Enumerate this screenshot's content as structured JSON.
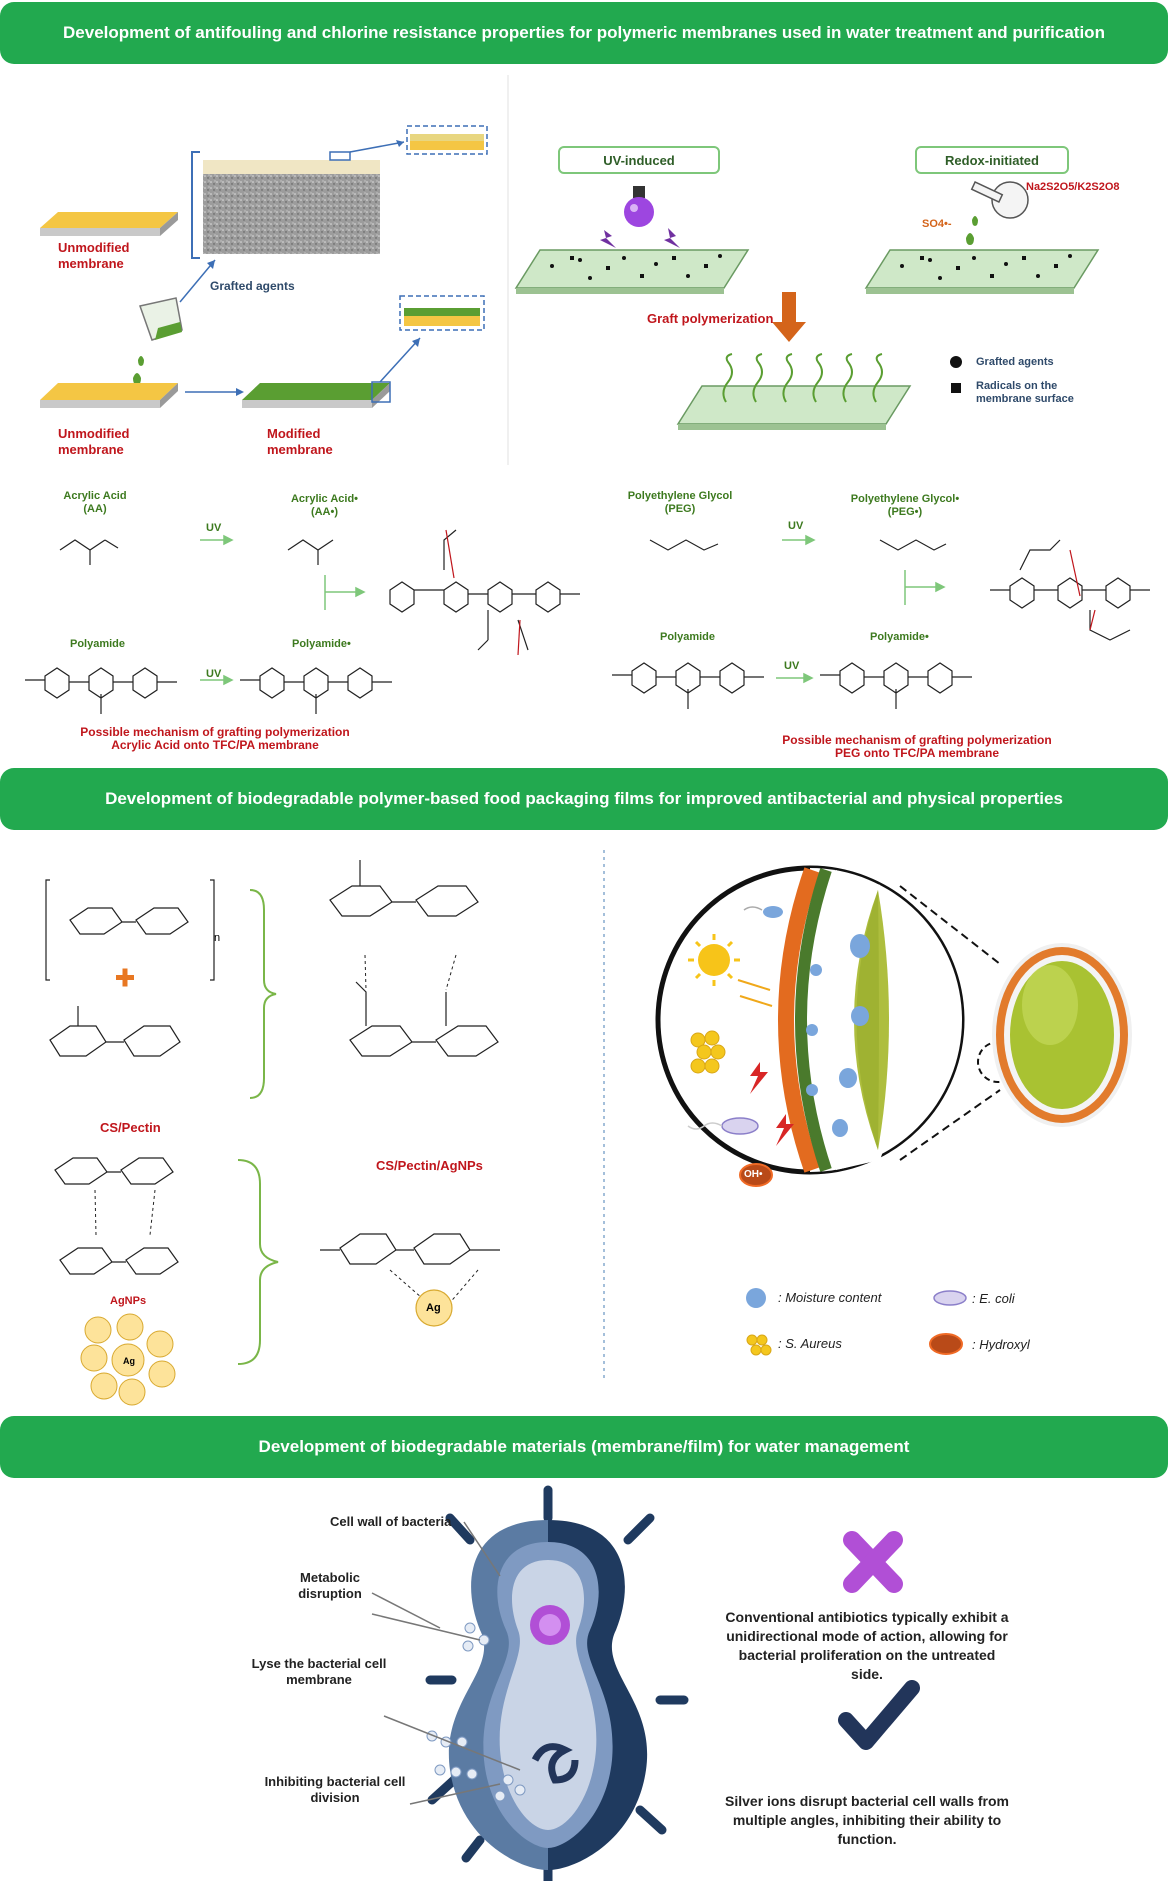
{
  "banners": {
    "b1": "Development of antifouling and chlorine resistance properties for polymeric membranes used in water treatment and purification",
    "b2": "Development of biodegradable polymer-based food packaging films for improved antibacterial and physical properties",
    "b3": "Development of biodegradable materials (membrane/film) for water management"
  },
  "section1": {
    "unmodified_1": "Unmodified membrane",
    "grafted_agents": "Grafted agents",
    "unmodified_2": "Unmodified membrane",
    "modified": "Modified membrane",
    "uv_induced": "UV-induced",
    "redox_initiated": "Redox-initiated",
    "oxidant": "Na2S2O5/K2S2O8",
    "sulfate_radical": "SO4•-",
    "graft_polymerization": "Graft polymerization",
    "legend_grafted": "Grafted agents",
    "legend_radicals": "Radicals on the membrane surface",
    "acrylic_acid": "Acrylic Acid",
    "aa": "(AA)",
    "acrylic_acid_rad": "Acrylic Acid•",
    "aa_rad": "(AA•)",
    "uv": "UV",
    "polyamide": "Polyamide",
    "polyamide_rad": "Polyamide•",
    "mech_aa_1": "Possible mechanism of grafting polymerization",
    "mech_aa_2": "Acrylic Acid onto TFC/PA membrane",
    "peg": "Polyethylene Glycol",
    "peg_abbr": "(PEG)",
    "peg_rad": "Polyethylene Glycol•",
    "peg_rad_abbr": "(PEG•)",
    "mech_peg_1": "Possible mechanism of grafting polymerization",
    "mech_peg_2": "PEG onto TFC/PA membrane"
  },
  "section2": {
    "cs_pectin": "CS/Pectin",
    "cs_pectin_ag": "CS/Pectin/AgNPs",
    "agnps": "AgNPs",
    "ag": "Ag",
    "n": "n",
    "plus": "+",
    "oh_label": "OH•",
    "legend_moisture": ": Moisture content",
    "legend_ecoli": ": E. coli",
    "legend_saureus": ": S. Aureus",
    "legend_hydroxyl": ": Hydroxyl"
  },
  "section3": {
    "cell_wall": "Cell wall of bacteria",
    "metabolic": "Metabolic disruption",
    "lyse": "Lyse the bacterial cell membrane",
    "inhibiting": "Inhibiting bacterial cell division",
    "conventional": "Conventional antibiotics typically exhibit a unidirectional mode of action, allowing for bacterial proliferation on the untreated side.",
    "silver": "Silver ions disrupt bacterial cell walls from multiple angles, inhibiting their ability to function."
  },
  "colors": {
    "banner": "#22a94f",
    "red_text": "#c0161c",
    "green_text": "#3d7a1f",
    "membrane_yellow": "#f4c644",
    "membrane_green": "#5a9e32",
    "bacteria_dark": "#1f3a5f",
    "bacteria_mid": "#5b7ba3",
    "cross_purple": "#b14fd6",
    "check_navy": "#22355a"
  }
}
